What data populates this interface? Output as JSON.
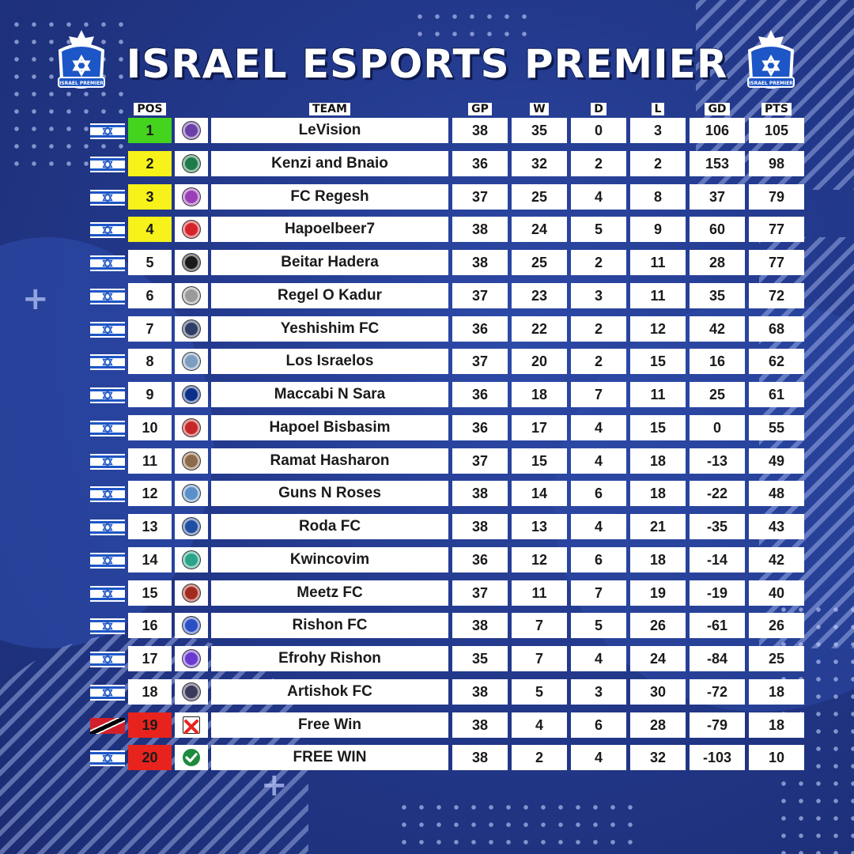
{
  "title": "ISRAEL ESPORTS PREMIER",
  "logo_text": "ISRAEL PREMIER",
  "colors": {
    "champion": "#44d41e",
    "europe": "#f6f21a",
    "relegation": "#e8231d",
    "background": "#23398c"
  },
  "headers": {
    "pos": "POS",
    "team": "TEAM",
    "gp": "GP",
    "w": "W",
    "d": "D",
    "l": "L",
    "gd": "GD",
    "pts": "PTS"
  },
  "rows": [
    {
      "pos": "1",
      "team": "LeVision",
      "gp": "38",
      "w": "35",
      "d": "0",
      "l": "3",
      "gd": "106",
      "pts": "105",
      "zone": "champion",
      "flag": "israel",
      "crest": "#6b3fa8"
    },
    {
      "pos": "2",
      "team": "Kenzi and Bnaio",
      "gp": "36",
      "w": "32",
      "d": "2",
      "l": "2",
      "gd": "153",
      "pts": "98",
      "zone": "europe",
      "flag": "israel",
      "crest": "#1f7a4a"
    },
    {
      "pos": "3",
      "team": "FC Regesh",
      "gp": "37",
      "w": "25",
      "d": "4",
      "l": "8",
      "gd": "37",
      "pts": "79",
      "zone": "europe",
      "flag": "israel",
      "crest": "#9b3fb8"
    },
    {
      "pos": "4",
      "team": "Hapoelbeer7",
      "gp": "38",
      "w": "24",
      "d": "5",
      "l": "9",
      "gd": "60",
      "pts": "77",
      "zone": "europe",
      "flag": "israel",
      "crest": "#d6232a"
    },
    {
      "pos": "5",
      "team": "Beitar Hadera",
      "gp": "38",
      "w": "25",
      "d": "2",
      "l": "11",
      "gd": "28",
      "pts": "77",
      "zone": "none",
      "flag": "israel",
      "crest": "#1a1a1a"
    },
    {
      "pos": "6",
      "team": "Regel O Kadur",
      "gp": "37",
      "w": "23",
      "d": "3",
      "l": "11",
      "gd": "35",
      "pts": "72",
      "zone": "none",
      "flag": "israel",
      "crest": "#9a9a9a"
    },
    {
      "pos": "7",
      "team": "Yeshishim FC",
      "gp": "36",
      "w": "22",
      "d": "2",
      "l": "12",
      "gd": "42",
      "pts": "68",
      "zone": "none",
      "flag": "israel",
      "crest": "#2f3e66"
    },
    {
      "pos": "8",
      "team": "Los Israelos",
      "gp": "37",
      "w": "20",
      "d": "2",
      "l": "15",
      "gd": "16",
      "pts": "62",
      "zone": "none",
      "flag": "israel",
      "crest": "#7d9ec0"
    },
    {
      "pos": "9",
      "team": "Maccabi N Sara",
      "gp": "36",
      "w": "18",
      "d": "7",
      "l": "11",
      "gd": "25",
      "pts": "61",
      "zone": "none",
      "flag": "israel",
      "crest": "#0c2f8a"
    },
    {
      "pos": "10",
      "team": "Hapoel Bisbasim",
      "gp": "36",
      "w": "17",
      "d": "4",
      "l": "15",
      "gd": "0",
      "pts": "55",
      "zone": "none",
      "flag": "israel",
      "crest": "#c62828"
    },
    {
      "pos": "11",
      "team": "Ramat Hasharon",
      "gp": "37",
      "w": "15",
      "d": "4",
      "l": "18",
      "gd": "-13",
      "pts": "49",
      "zone": "none",
      "flag": "israel",
      "crest": "#8c6a4a"
    },
    {
      "pos": "12",
      "team": "Guns N Roses",
      "gp": "38",
      "w": "14",
      "d": "6",
      "l": "18",
      "gd": "-22",
      "pts": "48",
      "zone": "none",
      "flag": "israel",
      "crest": "#5a8fc8"
    },
    {
      "pos": "13",
      "team": "Roda FC",
      "gp": "38",
      "w": "13",
      "d": "4",
      "l": "21",
      "gd": "-35",
      "pts": "43",
      "zone": "none",
      "flag": "israel",
      "crest": "#1f4fa0"
    },
    {
      "pos": "14",
      "team": "Kwincovim",
      "gp": "36",
      "w": "12",
      "d": "6",
      "l": "18",
      "gd": "-14",
      "pts": "42",
      "zone": "none",
      "flag": "israel",
      "crest": "#2aa58a"
    },
    {
      "pos": "15",
      "team": "Meetz FC",
      "gp": "37",
      "w": "11",
      "d": "7",
      "l": "19",
      "gd": "-19",
      "pts": "40",
      "zone": "none",
      "flag": "israel",
      "crest": "#a32a1f"
    },
    {
      "pos": "16",
      "team": "Rishon FC",
      "gp": "38",
      "w": "7",
      "d": "5",
      "l": "26",
      "gd": "-61",
      "pts": "26",
      "zone": "none",
      "flag": "israel",
      "crest": "#2b4fc4"
    },
    {
      "pos": "17",
      "team": "Efrohy Rishon",
      "gp": "35",
      "w": "7",
      "d": "4",
      "l": "24",
      "gd": "-84",
      "pts": "25",
      "zone": "none",
      "flag": "israel",
      "crest": "#6a3ad0"
    },
    {
      "pos": "18",
      "team": "Artishok FC",
      "gp": "38",
      "w": "5",
      "d": "3",
      "l": "30",
      "gd": "-72",
      "pts": "18",
      "zone": "none",
      "flag": "israel",
      "crest": "#3a3a5a"
    },
    {
      "pos": "19",
      "team": "Free Win",
      "gp": "38",
      "w": "4",
      "d": "6",
      "l": "28",
      "gd": "-79",
      "pts": "18",
      "zone": "relegation",
      "flag": "trinidad",
      "crest": "x-mark"
    },
    {
      "pos": "20",
      "team": "FREE WIN",
      "gp": "38",
      "w": "2",
      "d": "4",
      "l": "32",
      "gd": "-103",
      "pts": "10",
      "zone": "relegation",
      "flag": "israel",
      "crest": "check-mark"
    }
  ]
}
